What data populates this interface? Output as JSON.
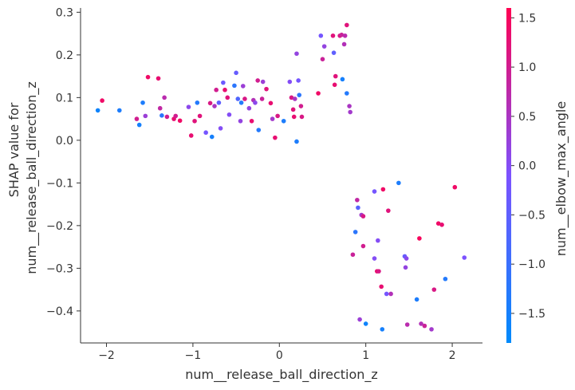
{
  "chart_data": {
    "type": "scatter",
    "xlabel": "num__release_ball_direction_z",
    "ylabel_lines": [
      "SHAP value for",
      "num__release_ball_direction_z"
    ],
    "xlim": [
      -2.3,
      2.35
    ],
    "ylim": [
      -0.475,
      0.31
    ],
    "x_ticks": [
      -2,
      -1,
      0,
      1,
      2
    ],
    "x_tick_labels": [
      "−2",
      "−1",
      "0",
      "1",
      "2"
    ],
    "y_ticks": [
      -0.4,
      -0.3,
      -0.2,
      -0.1,
      0.0,
      0.1,
      0.2,
      0.3
    ],
    "y_tick_labels": [
      "−0.4",
      "−0.3",
      "−0.2",
      "−0.1",
      "0.0",
      "0.1",
      "0.2",
      "0.3"
    ],
    "colorbar": {
      "label": "num__elbow_max_angle",
      "range": [
        -1.8,
        1.6
      ],
      "ticks": [
        -1.5,
        -1.0,
        -0.5,
        0.0,
        0.5,
        1.0,
        1.5
      ],
      "tick_labels": [
        "−1.5",
        "−1.0",
        "−0.5",
        "0.0",
        "0.5",
        "1.0",
        "1.5"
      ],
      "low_color": "#008afb",
      "mid_color": "#7c52ff",
      "high_color": "#ff0052"
    },
    "points": [
      {
        "x": -2.1,
        "y": 0.07,
        "c": -1.6
      },
      {
        "x": -2.05,
        "y": 0.093,
        "c": 1.4
      },
      {
        "x": -1.85,
        "y": 0.07,
        "c": -1.4
      },
      {
        "x": -1.65,
        "y": 0.05,
        "c": 1.0
      },
      {
        "x": -1.62,
        "y": 0.036,
        "c": -1.5
      },
      {
        "x": -1.58,
        "y": 0.088,
        "c": -1.4
      },
      {
        "x": -1.55,
        "y": 0.057,
        "c": 0.3
      },
      {
        "x": -1.52,
        "y": 0.148,
        "c": 1.4
      },
      {
        "x": -1.4,
        "y": 0.145,
        "c": 1.3
      },
      {
        "x": -1.38,
        "y": 0.075,
        "c": 0.8
      },
      {
        "x": -1.36,
        "y": 0.058,
        "c": -1.2
      },
      {
        "x": -1.33,
        "y": 0.1,
        "c": 0.7
      },
      {
        "x": -1.3,
        "y": 0.055,
        "c": 1.0
      },
      {
        "x": -1.22,
        "y": 0.05,
        "c": 1.3
      },
      {
        "x": -1.2,
        "y": 0.057,
        "c": 1.0
      },
      {
        "x": -1.15,
        "y": 0.046,
        "c": 1.4
      },
      {
        "x": -1.05,
        "y": 0.078,
        "c": 0.1
      },
      {
        "x": -1.02,
        "y": 0.011,
        "c": 1.3
      },
      {
        "x": -0.98,
        "y": 0.045,
        "c": 1.2
      },
      {
        "x": -0.95,
        "y": 0.088,
        "c": -1.3
      },
      {
        "x": -0.92,
        "y": 0.057,
        "c": 1.2
      },
      {
        "x": -0.85,
        "y": 0.018,
        "c": -0.2
      },
      {
        "x": -0.8,
        "y": 0.087,
        "c": 1.1
      },
      {
        "x": -0.78,
        "y": 0.008,
        "c": -1.5
      },
      {
        "x": -0.75,
        "y": 0.08,
        "c": 0.5
      },
      {
        "x": -0.73,
        "y": 0.118,
        "c": 1.0
      },
      {
        "x": -0.7,
        "y": 0.088,
        "c": -0.5
      },
      {
        "x": -0.68,
        "y": 0.028,
        "c": 0.0
      },
      {
        "x": -0.65,
        "y": 0.135,
        "c": -0.3
      },
      {
        "x": -0.63,
        "y": 0.118,
        "c": 1.3
      },
      {
        "x": -0.6,
        "y": 0.1,
        "c": 1.2
      },
      {
        "x": -0.58,
        "y": 0.06,
        "c": 0.0
      },
      {
        "x": -0.52,
        "y": 0.128,
        "c": -1.2
      },
      {
        "x": -0.5,
        "y": 0.158,
        "c": -0.4
      },
      {
        "x": -0.48,
        "y": 0.097,
        "c": -0.7
      },
      {
        "x": -0.45,
        "y": 0.045,
        "c": 0.2
      },
      {
        "x": -0.44,
        "y": 0.088,
        "c": -1.3
      },
      {
        "x": -0.42,
        "y": 0.127,
        "c": 0.3
      },
      {
        "x": -0.4,
        "y": 0.097,
        "c": 1.1
      },
      {
        "x": -0.35,
        "y": 0.075,
        "c": 0.2
      },
      {
        "x": -0.32,
        "y": 0.045,
        "c": 1.3
      },
      {
        "x": -0.3,
        "y": 0.094,
        "c": 0.6
      },
      {
        "x": -0.28,
        "y": 0.088,
        "c": 0.1
      },
      {
        "x": -0.25,
        "y": 0.14,
        "c": 1.0
      },
      {
        "x": -0.24,
        "y": 0.024,
        "c": -1.3
      },
      {
        "x": -0.2,
        "y": 0.097,
        "c": 0.9
      },
      {
        "x": -0.19,
        "y": 0.137,
        "c": 0.3
      },
      {
        "x": -0.15,
        "y": 0.12,
        "c": 1.2
      },
      {
        "x": -0.1,
        "y": 0.087,
        "c": 1.3
      },
      {
        "x": -0.08,
        "y": 0.05,
        "c": 0.4
      },
      {
        "x": -0.05,
        "y": 0.006,
        "c": 1.3
      },
      {
        "x": -0.02,
        "y": 0.057,
        "c": 1.1
      },
      {
        "x": 0.05,
        "y": 0.045,
        "c": -1.4
      },
      {
        "x": 0.12,
        "y": 0.137,
        "c": 0.0
      },
      {
        "x": 0.14,
        "y": 0.1,
        "c": 1.1
      },
      {
        "x": 0.16,
        "y": 0.072,
        "c": 1.2
      },
      {
        "x": 0.17,
        "y": 0.055,
        "c": 1.3
      },
      {
        "x": 0.18,
        "y": 0.097,
        "c": 0.5
      },
      {
        "x": 0.2,
        "y": -0.003,
        "c": -1.4
      },
      {
        "x": 0.22,
        "y": 0.14,
        "c": -0.2
      },
      {
        "x": 0.23,
        "y": 0.106,
        "c": -1.2
      },
      {
        "x": 0.25,
        "y": 0.08,
        "c": 1.0
      },
      {
        "x": 0.26,
        "y": 0.055,
        "c": 1.1
      },
      {
        "x": 0.2,
        "y": 0.203,
        "c": 0.2
      },
      {
        "x": 0.45,
        "y": 0.11,
        "c": 1.4
      },
      {
        "x": 0.48,
        "y": 0.245,
        "c": -0.2
      },
      {
        "x": 0.5,
        "y": 0.19,
        "c": 0.9
      },
      {
        "x": 0.52,
        "y": 0.22,
        "c": 0.2
      },
      {
        "x": 0.62,
        "y": 0.245,
        "c": 1.2
      },
      {
        "x": 0.63,
        "y": 0.205,
        "c": -0.5
      },
      {
        "x": 0.64,
        "y": 0.13,
        "c": 1.3
      },
      {
        "x": 0.65,
        "y": 0.15,
        "c": 1.2
      },
      {
        "x": 0.7,
        "y": 0.245,
        "c": 1.1
      },
      {
        "x": 0.72,
        "y": 0.247,
        "c": 0.9
      },
      {
        "x": 0.73,
        "y": 0.143,
        "c": -1.5
      },
      {
        "x": 0.75,
        "y": 0.225,
        "c": 0.6
      },
      {
        "x": 0.76,
        "y": 0.245,
        "c": 0.7
      },
      {
        "x": 0.78,
        "y": 0.27,
        "c": 1.2
      },
      {
        "x": 0.78,
        "y": 0.11,
        "c": -1.3
      },
      {
        "x": 0.81,
        "y": 0.08,
        "c": 0.5
      },
      {
        "x": 0.82,
        "y": 0.066,
        "c": 0.4
      },
      {
        "x": 0.85,
        "y": -0.268,
        "c": 0.9
      },
      {
        "x": 0.88,
        "y": -0.215,
        "c": -1.2
      },
      {
        "x": 0.9,
        "y": -0.14,
        "c": 0.8
      },
      {
        "x": 0.91,
        "y": -0.158,
        "c": -0.6
      },
      {
        "x": 0.93,
        "y": -0.42,
        "c": 0.3
      },
      {
        "x": 0.95,
        "y": -0.175,
        "c": 0.4
      },
      {
        "x": 0.97,
        "y": -0.178,
        "c": 1.1
      },
      {
        "x": 0.97,
        "y": -0.248,
        "c": 1.0
      },
      {
        "x": 1.0,
        "y": -0.43,
        "c": -1.6
      },
      {
        "x": 1.1,
        "y": -0.12,
        "c": -0.2
      },
      {
        "x": 1.1,
        "y": -0.277,
        "c": 0.0
      },
      {
        "x": 1.13,
        "y": -0.307,
        "c": 1.3
      },
      {
        "x": 1.14,
        "y": -0.235,
        "c": 0.0
      },
      {
        "x": 1.15,
        "y": -0.307,
        "c": 1.1
      },
      {
        "x": 1.18,
        "y": -0.343,
        "c": 1.3
      },
      {
        "x": 1.19,
        "y": -0.443,
        "c": -1.5
      },
      {
        "x": 1.2,
        "y": -0.115,
        "c": 1.4
      },
      {
        "x": 1.24,
        "y": -0.36,
        "c": -0.2
      },
      {
        "x": 1.26,
        "y": -0.165,
        "c": 1.2
      },
      {
        "x": 1.29,
        "y": -0.36,
        "c": 0.6
      },
      {
        "x": 1.38,
        "y": -0.1,
        "c": -1.4
      },
      {
        "x": 1.45,
        "y": -0.272,
        "c": -0.4
      },
      {
        "x": 1.46,
        "y": -0.298,
        "c": 0.2
      },
      {
        "x": 1.47,
        "y": -0.277,
        "c": 0.1
      },
      {
        "x": 1.48,
        "y": -0.432,
        "c": 0.7
      },
      {
        "x": 1.59,
        "y": -0.373,
        "c": -1.4
      },
      {
        "x": 1.62,
        "y": -0.23,
        "c": 1.5
      },
      {
        "x": 1.64,
        "y": -0.43,
        "c": 0.6
      },
      {
        "x": 1.68,
        "y": -0.435,
        "c": 0.9
      },
      {
        "x": 1.76,
        "y": -0.443,
        "c": 0.4
      },
      {
        "x": 1.79,
        "y": -0.35,
        "c": 1.1
      },
      {
        "x": 1.84,
        "y": -0.195,
        "c": 1.4
      },
      {
        "x": 1.88,
        "y": -0.198,
        "c": 1.3
      },
      {
        "x": 1.92,
        "y": -0.325,
        "c": -1.3
      },
      {
        "x": 2.03,
        "y": -0.11,
        "c": 1.4
      },
      {
        "x": 2.14,
        "y": -0.275,
        "c": -0.1
      }
    ]
  }
}
